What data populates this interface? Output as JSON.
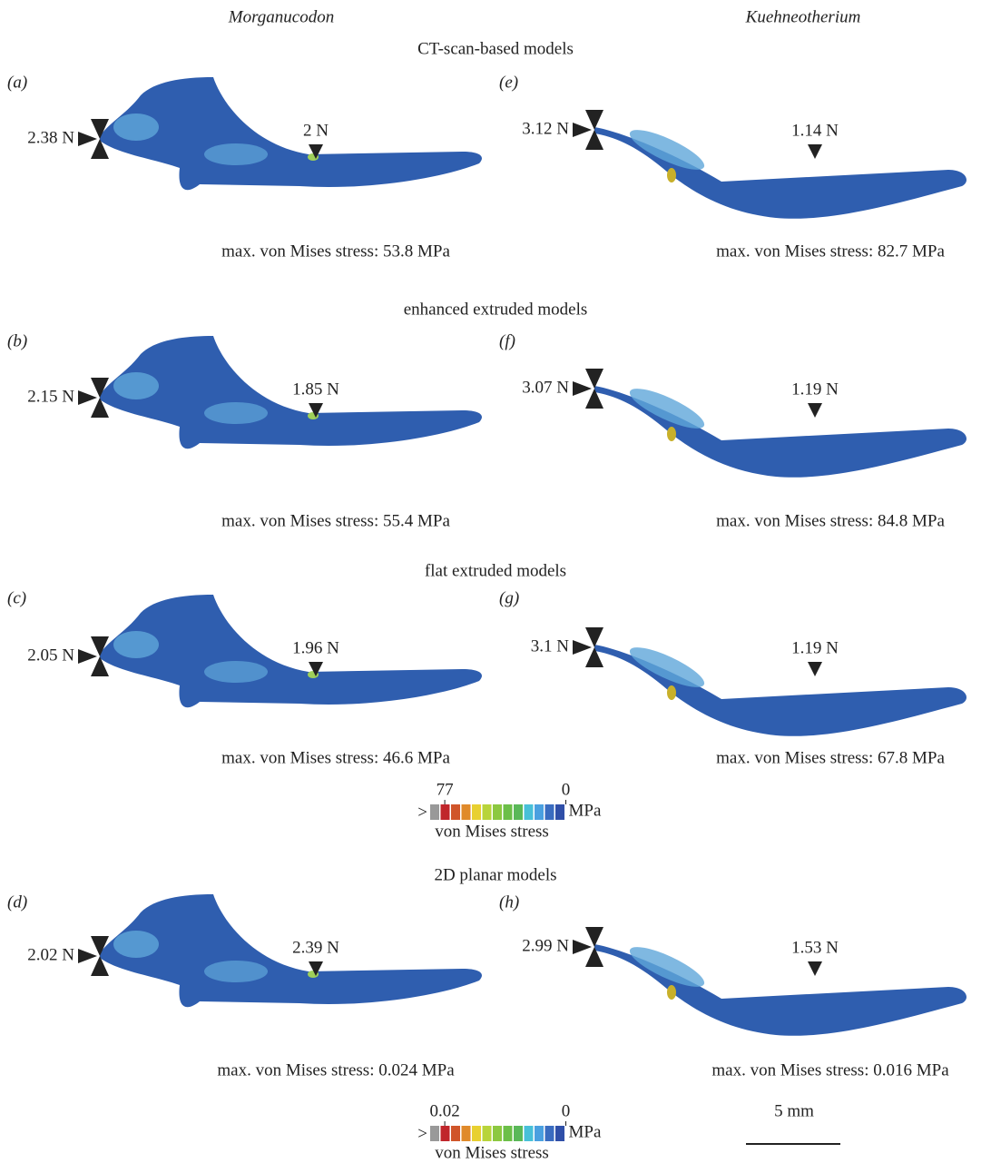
{
  "columns": [
    "Morganucodon",
    "Kuehneotherium"
  ],
  "sections": [
    {
      "title": "CT-scan-based models",
      "panels": [
        {
          "label": "(a)",
          "joint_force": "2.38 N",
          "bite_force": "2 N",
          "max_stress": "max. von Mises stress: 53.8 MPa"
        },
        {
          "label": "(e)",
          "joint_force": "3.12 N",
          "bite_force": "1.14 N",
          "max_stress": "max. von Mises stress: 82.7 MPa"
        }
      ]
    },
    {
      "title": "enhanced extruded models",
      "panels": [
        {
          "label": "(b)",
          "joint_force": "2.15 N",
          "bite_force": "1.85 N",
          "max_stress": "max. von Mises stress: 55.4 MPa"
        },
        {
          "label": "(f)",
          "joint_force": "3.07 N",
          "bite_force": "1.19 N",
          "max_stress": "max. von Mises stress: 84.8 MPa"
        }
      ]
    },
    {
      "title": "flat extruded models",
      "panels": [
        {
          "label": "(c)",
          "joint_force": "2.05 N",
          "bite_force": "1.96 N",
          "max_stress": "max. von Mises stress: 46.6 MPa"
        },
        {
          "label": "(g)",
          "joint_force": "3.1 N",
          "bite_force": "1.19 N",
          "max_stress": "max. von Mises stress: 67.8 MPa"
        }
      ]
    },
    {
      "title": "2D planar models",
      "panels": [
        {
          "label": "(d)",
          "joint_force": "2.02 N",
          "bite_force": "2.39 N",
          "max_stress": "max. von Mises stress: 0.024 MPa"
        },
        {
          "label": "(h)",
          "joint_force": "2.99 N",
          "bite_force": "1.53 N",
          "max_stress": "max. von Mises stress: 0.016 MPa"
        }
      ]
    }
  ],
  "legends": [
    {
      "prefix": ">",
      "max": "77",
      "min": "0",
      "unit": "MPa",
      "title": "von Mises stress"
    },
    {
      "prefix": ">",
      "max": "0.02",
      "min": "0",
      "unit": "MPa",
      "title": "von Mises stress"
    }
  ],
  "scale_bar": "5 mm"
}
